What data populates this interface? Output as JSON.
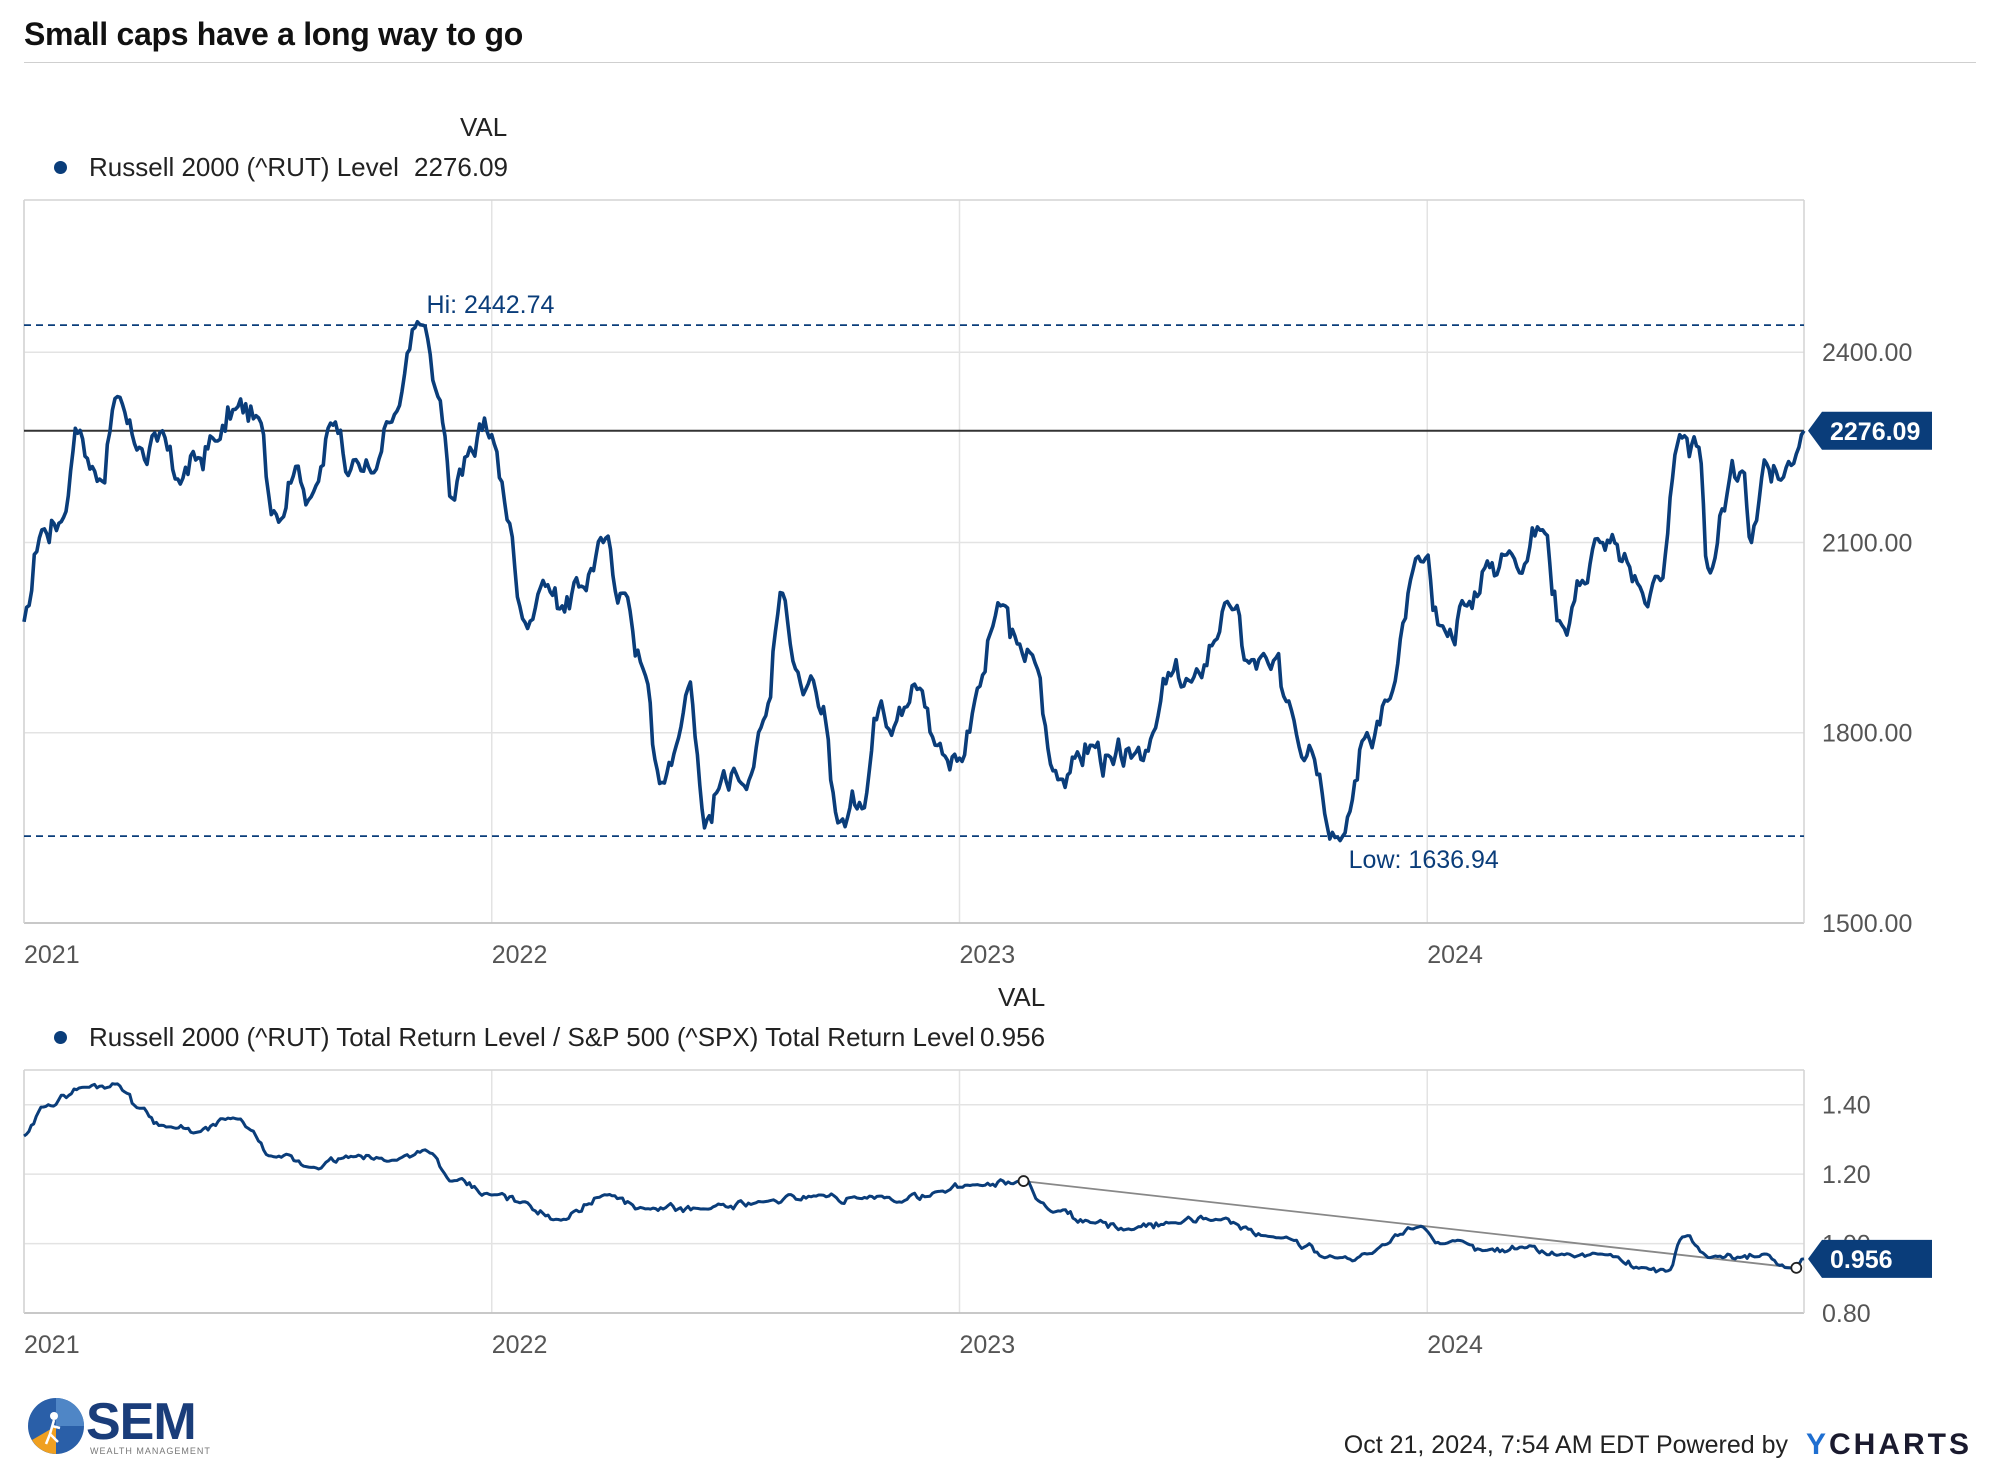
{
  "title": "Small caps have a long way to go",
  "top_panel": {
    "legend_header": "VAL",
    "series_label": "Russell 2000 (^RUT) Level",
    "series_value": "2276.09",
    "current_tag": "2276.09",
    "hi_label": "Hi: 2442.74",
    "low_label": "Low: 1636.94"
  },
  "bottom_panel": {
    "legend_header": "VAL",
    "series_label": "Russell 2000 (^RUT) Total Return Level / S&P 500 (^SPX) Total Return Level",
    "series_value": "0.956",
    "current_tag": "0.956"
  },
  "footer": {
    "timestamp": "Oct 21, 2024, 7:54 AM EDT Powered by",
    "brand_y": "Y",
    "brand_rest": "CHARTS",
    "logo_text": "SEM",
    "logo_subtext": "WEALTH MANAGEMENT"
  },
  "colors": {
    "series": "#0a3d7a",
    "grid": "#e3e3e3",
    "reference_line": "#333333",
    "trendline": "#888888"
  },
  "chart_data": [
    {
      "type": "line",
      "title": "",
      "series": [
        {
          "name": "Russell 2000 (^RUT) Level",
          "points": [
            [
              "2021-01-01",
              1975
            ],
            [
              "2021-01-15",
              2120
            ],
            [
              "2021-02-01",
              2140
            ],
            [
              "2021-02-10",
              2280
            ],
            [
              "2021-03-01",
              2200
            ],
            [
              "2021-03-15",
              2330
            ],
            [
              "2021-04-01",
              2250
            ],
            [
              "2021-04-15",
              2260
            ],
            [
              "2021-05-01",
              2200
            ],
            [
              "2021-05-15",
              2230
            ],
            [
              "2021-06-01",
              2260
            ],
            [
              "2021-06-15",
              2310
            ],
            [
              "2021-07-01",
              2300
            ],
            [
              "2021-07-15",
              2150
            ],
            [
              "2021-08-01",
              2220
            ],
            [
              "2021-08-15",
              2180
            ],
            [
              "2021-09-01",
              2290
            ],
            [
              "2021-09-15",
              2230
            ],
            [
              "2021-10-01",
              2210
            ],
            [
              "2021-10-15",
              2290
            ],
            [
              "2021-11-08",
              2442.74
            ],
            [
              "2021-11-20",
              2330
            ],
            [
              "2021-12-01",
              2170
            ],
            [
              "2021-12-15",
              2250
            ],
            [
              "2022-01-01",
              2270
            ],
            [
              "2022-01-15",
              2130
            ],
            [
              "2022-01-25",
              1980
            ],
            [
              "2022-02-10",
              2040
            ],
            [
              "2022-02-25",
              2000
            ],
            [
              "2022-03-10",
              2030
            ],
            [
              "2022-03-29",
              2100
            ],
            [
              "2022-04-15",
              2020
            ],
            [
              "2022-05-01",
              1890
            ],
            [
              "2022-05-12",
              1720
            ],
            [
              "2022-05-25",
              1780
            ],
            [
              "2022-06-05",
              1880
            ],
            [
              "2022-06-16",
              1650
            ],
            [
              "2022-07-01",
              1740
            ],
            [
              "2022-07-15",
              1720
            ],
            [
              "2022-08-01",
              1820
            ],
            [
              "2022-08-16",
              2020
            ],
            [
              "2022-09-01",
              1860
            ],
            [
              "2022-09-15",
              1830
            ],
            [
              "2022-09-30",
              1660
            ],
            [
              "2022-10-15",
              1690
            ],
            [
              "2022-11-01",
              1850
            ],
            [
              "2022-11-15",
              1840
            ],
            [
              "2022-12-01",
              1870
            ],
            [
              "2022-12-15",
              1780
            ],
            [
              "2023-01-01",
              1760
            ],
            [
              "2023-01-15",
              1870
            ],
            [
              "2023-02-02",
              2000
            ],
            [
              "2023-02-15",
              1940
            ],
            [
              "2023-03-01",
              1910
            ],
            [
              "2023-03-15",
              1740
            ],
            [
              "2023-04-01",
              1760
            ],
            [
              "2023-04-15",
              1780
            ],
            [
              "2023-05-01",
              1750
            ],
            [
              "2023-05-15",
              1760
            ],
            [
              "2023-06-01",
              1800
            ],
            [
              "2023-06-15",
              1890
            ],
            [
              "2023-07-01",
              1880
            ],
            [
              "2023-07-31",
              2000
            ],
            [
              "2023-08-15",
              1910
            ],
            [
              "2023-09-01",
              1900
            ],
            [
              "2023-09-15",
              1850
            ],
            [
              "2023-10-01",
              1780
            ],
            [
              "2023-10-27",
              1636.94
            ],
            [
              "2023-11-15",
              1800
            ],
            [
              "2023-12-01",
              1850
            ],
            [
              "2023-12-27",
              2070
            ],
            [
              "2024-01-15",
              1960
            ],
            [
              "2024-02-01",
              2000
            ],
            [
              "2024-02-15",
              2060
            ],
            [
              "2024-03-01",
              2080
            ],
            [
              "2024-03-31",
              2120
            ],
            [
              "2024-04-15",
              1970
            ],
            [
              "2024-05-01",
              2040
            ],
            [
              "2024-05-15",
              2100
            ],
            [
              "2024-06-01",
              2070
            ],
            [
              "2024-06-15",
              2030
            ],
            [
              "2024-07-01",
              2040
            ],
            [
              "2024-07-16",
              2270
            ],
            [
              "2024-07-31",
              2250
            ],
            [
              "2024-08-07",
              2060
            ],
            [
              "2024-08-20",
              2150
            ],
            [
              "2024-09-01",
              2210
            ],
            [
              "2024-09-10",
              2100
            ],
            [
              "2024-09-20",
              2230
            ],
            [
              "2024-10-01",
              2200
            ],
            [
              "2024-10-21",
              2276.09
            ]
          ]
        }
      ],
      "x_tick_labels": [
        "2021",
        "2022",
        "2023",
        "2024"
      ],
      "y_ticks": [
        1500,
        1800,
        2100,
        2400
      ],
      "y_tick_labels": [
        "1500.00",
        "1800.00",
        "2100.00",
        "2400.00"
      ],
      "ylim": [
        1500,
        2640
      ],
      "xlim": [
        "2021-01-01",
        "2024-10-21"
      ],
      "reference_lines": [
        {
          "kind": "high",
          "value": 2442.74,
          "style": "dashed"
        },
        {
          "kind": "low",
          "value": 1636.94,
          "style": "dashed"
        },
        {
          "kind": "current",
          "value": 2276.09,
          "style": "solid"
        }
      ],
      "grid": true,
      "legend_placement": "top-left"
    },
    {
      "type": "line",
      "title": "",
      "series": [
        {
          "name": "Russell 2000 (^RUT) Total Return Level / S&P 500 (^SPX) Total Return Level",
          "points": [
            [
              "2021-01-01",
              1.31
            ],
            [
              "2021-01-20",
              1.4
            ],
            [
              "2021-02-15",
              1.45
            ],
            [
              "2021-03-15",
              1.46
            ],
            [
              "2021-04-01",
              1.39
            ],
            [
              "2021-04-20",
              1.34
            ],
            [
              "2021-05-15",
              1.32
            ],
            [
              "2021-06-15",
              1.36
            ],
            [
              "2021-07-15",
              1.25
            ],
            [
              "2021-08-15",
              1.22
            ],
            [
              "2021-09-15",
              1.25
            ],
            [
              "2021-10-15",
              1.24
            ],
            [
              "2021-11-10",
              1.27
            ],
            [
              "2021-12-01",
              1.18
            ],
            [
              "2022-01-01",
              1.14
            ],
            [
              "2022-01-25",
              1.12
            ],
            [
              "2022-02-20",
              1.07
            ],
            [
              "2022-04-01",
              1.14
            ],
            [
              "2022-05-01",
              1.1
            ],
            [
              "2022-06-15",
              1.1
            ],
            [
              "2022-08-01",
              1.12
            ],
            [
              "2022-09-15",
              1.14
            ],
            [
              "2022-10-15",
              1.13
            ],
            [
              "2022-11-15",
              1.12
            ],
            [
              "2022-12-15",
              1.15
            ],
            [
              "2023-01-15",
              1.17
            ],
            [
              "2023-02-20",
              1.18
            ],
            [
              "2023-03-15",
              1.09
            ],
            [
              "2023-04-15",
              1.06
            ],
            [
              "2023-05-15",
              1.04
            ],
            [
              "2023-06-15",
              1.06
            ],
            [
              "2023-07-20",
              1.07
            ],
            [
              "2023-09-01",
              1.02
            ],
            [
              "2023-10-27",
              0.96
            ],
            [
              "2023-11-15",
              0.97
            ],
            [
              "2023-12-27",
              1.05
            ],
            [
              "2024-01-15",
              1.0
            ],
            [
              "2024-02-15",
              0.98
            ],
            [
              "2024-03-15",
              0.99
            ],
            [
              "2024-04-15",
              0.97
            ],
            [
              "2024-05-15",
              0.97
            ],
            [
              "2024-06-20",
              0.93
            ],
            [
              "2024-07-05",
              0.92
            ],
            [
              "2024-07-20",
              1.02
            ],
            [
              "2024-08-07",
              0.96
            ],
            [
              "2024-09-01",
              0.96
            ],
            [
              "2024-09-20",
              0.97
            ],
            [
              "2024-10-10",
              0.93
            ],
            [
              "2024-10-21",
              0.956
            ]
          ]
        }
      ],
      "trendline": {
        "from": [
          "2023-02-20",
          1.18
        ],
        "to": [
          "2024-10-15",
          0.93
        ]
      },
      "x_tick_labels": [
        "2021",
        "2022",
        "2023",
        "2024"
      ],
      "y_ticks": [
        0.8,
        1.0,
        1.2,
        1.4
      ],
      "y_tick_labels": [
        "0.80",
        "1.00",
        "1.20",
        "1.40"
      ],
      "ylim": [
        0.8,
        1.5
      ],
      "xlim": [
        "2021-01-01",
        "2024-10-21"
      ],
      "reference_lines": [
        {
          "kind": "current",
          "value": 0.956,
          "style": "tag"
        }
      ],
      "grid": true,
      "legend_placement": "top-left"
    }
  ]
}
